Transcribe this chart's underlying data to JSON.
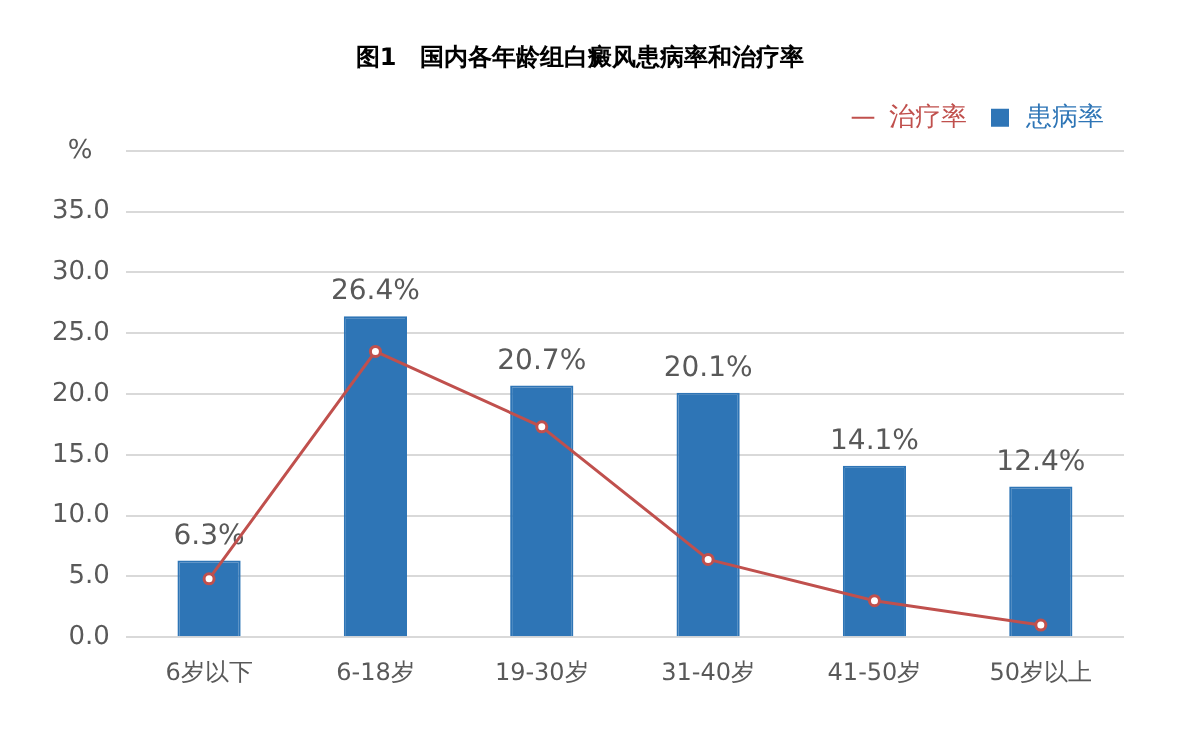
{
  "chart_data": {
    "type": "bar",
    "title": "图1　国内各年龄组白癜风患病率和治疗率",
    "ylabel": "%",
    "categories": [
      "6岁以下",
      "6-18岁",
      "19-30岁",
      "31-40岁",
      "41-50岁",
      "50岁以上"
    ],
    "series": [
      {
        "name": "治疗率",
        "type": "line",
        "color": "#c0504d",
        "values": [
          4.8,
          23.5,
          17.3,
          6.4,
          3.0,
          1.0
        ],
        "marker": "circle"
      },
      {
        "name": "患病率",
        "color": "#2e75b6",
        "values": [
          6.3,
          26.4,
          20.7,
          20.1,
          14.1,
          12.4
        ],
        "value_labels": [
          "6.3%",
          "26.4%",
          "20.7%",
          "20.1%",
          "14.1%",
          "12.4%"
        ]
      }
    ],
    "ylim": [
      0,
      40
    ],
    "yticks": [
      {
        "value": 0,
        "label": "0.0"
      },
      {
        "value": 5,
        "label": "5.0"
      },
      {
        "value": 10,
        "label": "10.0"
      },
      {
        "value": 15,
        "label": "15.0"
      },
      {
        "value": 20,
        "label": "20.0"
      },
      {
        "value": 25,
        "label": "25.0"
      },
      {
        "value": 30,
        "label": "30.0"
      },
      {
        "value": 35,
        "label": "35.0"
      },
      {
        "value": 40,
        "label": null
      }
    ],
    "grid": "y",
    "legend": "top right"
  }
}
